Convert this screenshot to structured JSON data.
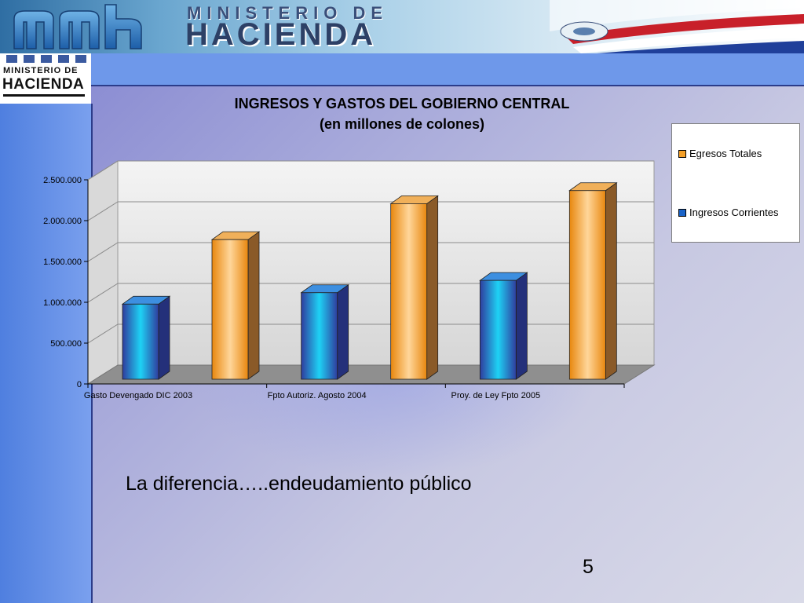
{
  "banner": {
    "title_line1": "MINISTERIO DE",
    "title_line2": "HACIENDA"
  },
  "logo": {
    "line1": "MINISTERIO DE",
    "line2": "HACIENDA"
  },
  "colors": {
    "egresos": "#f5a028",
    "ingresos": "#1a63c8",
    "header_strip": "#6e98ea",
    "left_bar": "#5b88e4"
  },
  "chart_data": {
    "type": "bar",
    "title": "INGRESOS Y GASTOS DEL GOBIERNO CENTRAL",
    "subtitle": "(en millones de colones)",
    "categories": [
      "Gasto Devengado DIC  2003",
      "Fpto  Autoriz.  Agosto   2004",
      "Proy. de Ley Fpto  2005"
    ],
    "series": [
      {
        "name": "Ingresos Corrientes",
        "values": [
          920000,
          1060000,
          1210000
        ]
      },
      {
        "name": "Egresos Totales",
        "values": [
          1710000,
          2150000,
          2310000
        ]
      }
    ],
    "yticks": [
      "0",
      "500.000",
      "1.000.000",
      "1.500.000",
      "2.000.000",
      "2.500.000"
    ],
    "ylim": [
      0,
      2500000
    ],
    "legend_entries": [
      "Egresos Totales",
      "Ingresos Corrientes"
    ],
    "legend_position": "right",
    "grid": true
  },
  "caption": "La diferencia…..endeudamiento público",
  "page_number": "5"
}
